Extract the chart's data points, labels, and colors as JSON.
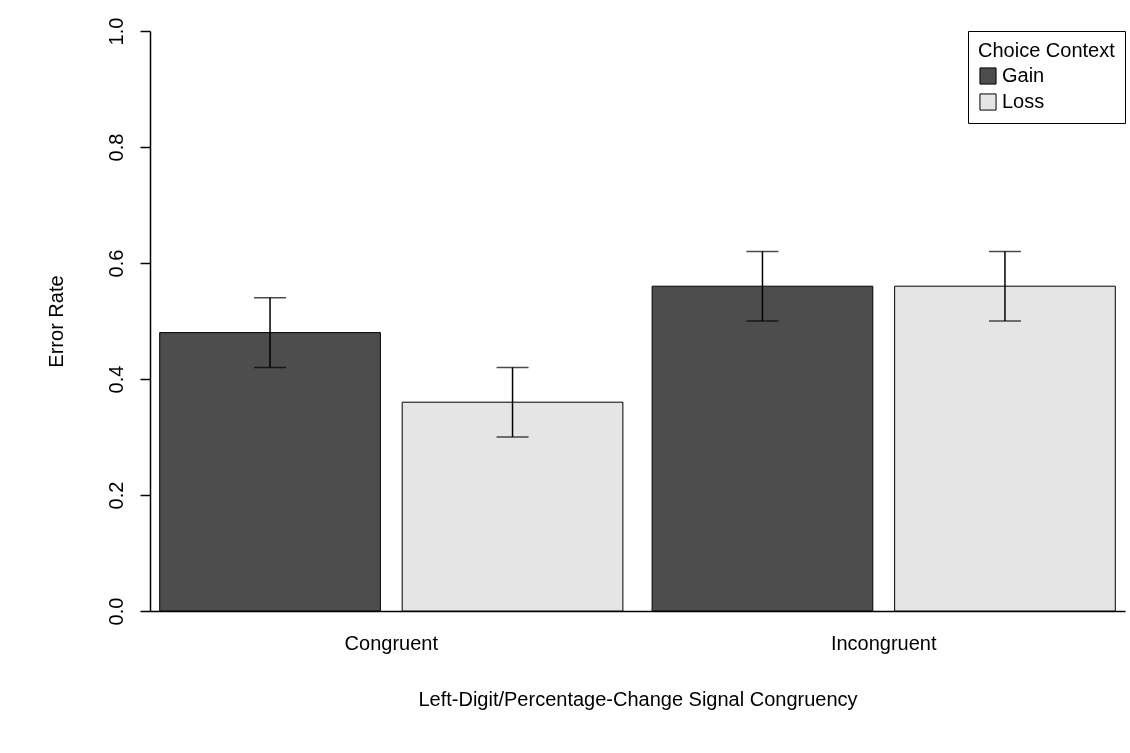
{
  "chart_data": {
    "type": "bar",
    "xlabel": "Left-Digit/Percentage-Change Signal Congruency",
    "ylabel": "Error Rate",
    "legend_title": "Choice Context",
    "categories": [
      "Congruent",
      "Incongruent"
    ],
    "series": [
      {
        "name": "Gain",
        "color": "#4d4d4d",
        "values": [
          0.48,
          0.56
        ],
        "errors": [
          0.06,
          0.06
        ]
      },
      {
        "name": "Loss",
        "color": "#e5e5e5",
        "values": [
          0.36,
          0.56
        ],
        "errors": [
          0.06,
          0.06
        ]
      }
    ],
    "ylim": [
      0,
      1
    ],
    "yticks": [
      {
        "value": 0,
        "label": "0.0"
      },
      0.2,
      0.4,
      0.6,
      0.8,
      {
        "value": 1,
        "label": "1.0"
      }
    ],
    "grid": false,
    "legend": "top right"
  }
}
